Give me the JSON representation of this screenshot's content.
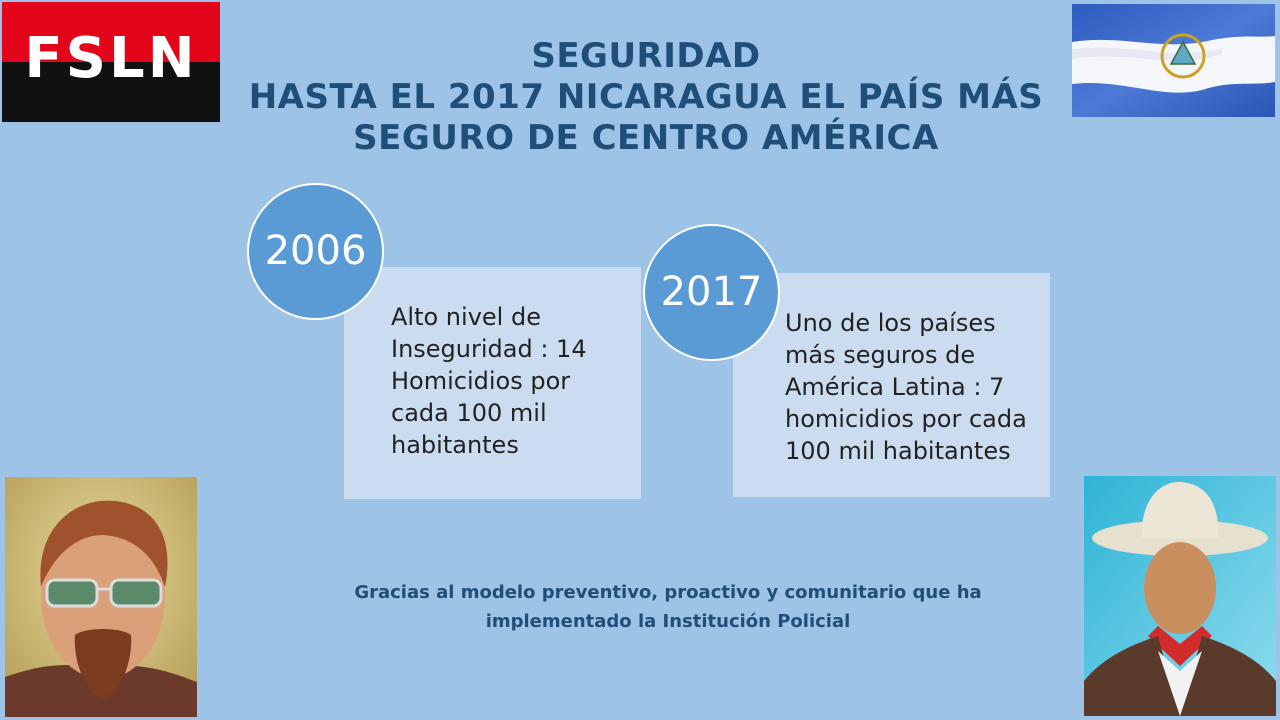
{
  "logo": {
    "text": "FSLN"
  },
  "title": {
    "line1": "SEGURIDAD",
    "line2": "HASTA EL 2017 NICARAGUA  EL PAÍS MÁS",
    "line3": "SEGURO DE CENTRO AMÉRICA"
  },
  "milestones": [
    {
      "year": "2006",
      "text": "Alto nivel de Inseguridad  : 14 Homicidios por cada 100 mil habitantes"
    },
    {
      "year": "2017",
      "text": "Uno de los países más seguros de América Latina : 7 homicidios por cada 100 mil habitantes"
    }
  ],
  "note": {
    "line1": "Gracias al modelo preventivo, proactivo y comunitario que ha",
    "line2": "implementado la Institución Policial"
  },
  "colors": {
    "background": "#9dc3e6",
    "title": "#1f4e79",
    "circle": "#5b9bd5",
    "box": "#ccdcf0",
    "flag_blue": "#3a66c4",
    "logo_red": "#e3061b"
  }
}
